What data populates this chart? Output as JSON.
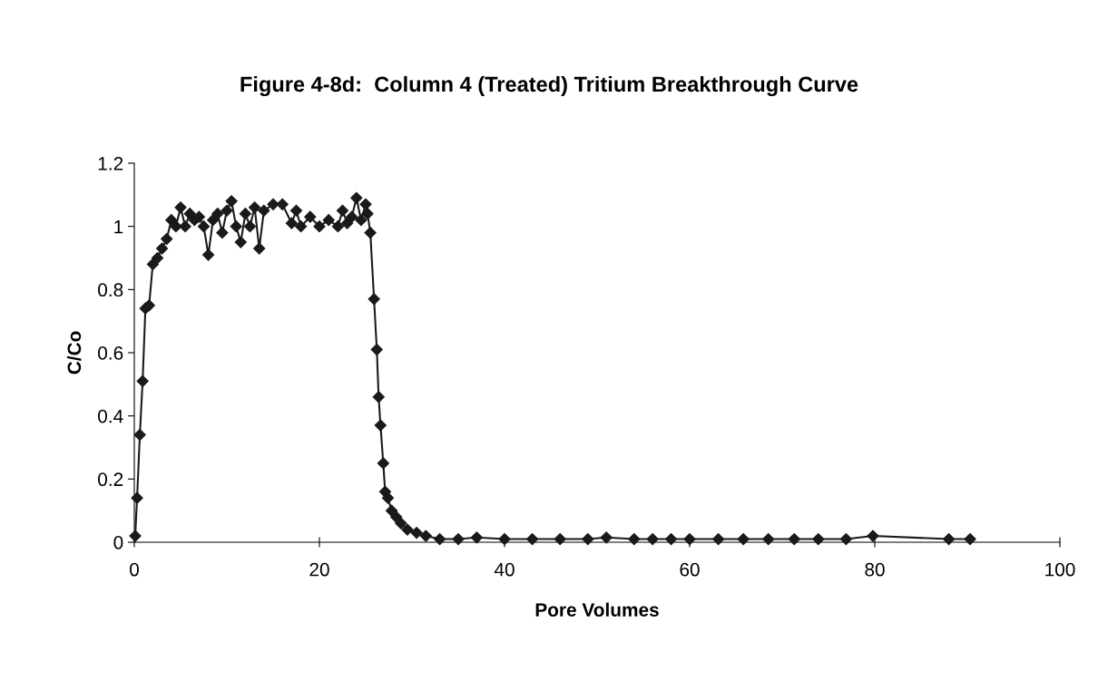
{
  "chart_data": {
    "type": "line",
    "title": "Figure 4-8d:  Column 4 (Treated) Tritium Breakthrough Curve",
    "xlabel": "Pore Volumes",
    "ylabel": "C/Co",
    "xlim": [
      0,
      100
    ],
    "xticks": [
      0,
      20,
      40,
      60,
      80,
      100
    ],
    "ylim": [
      0,
      1.2
    ],
    "yticks": [
      0,
      0.2,
      0.4,
      0.6,
      0.8,
      1,
      1.2
    ],
    "marker": "diamond",
    "line_style": "solid",
    "grid": false,
    "legend": false,
    "series": [
      {
        "color": "#1a1a1a",
        "x": [
          0.1,
          0.3,
          0.6,
          0.9,
          1.2,
          1.6,
          2.0,
          2.5,
          3.0,
          3.5,
          4.0,
          4.5,
          5.0,
          5.5,
          6.0,
          6.5,
          7.0,
          7.5,
          8.0,
          8.5,
          9.0,
          9.5,
          10.0,
          10.5,
          11.0,
          11.5,
          12.0,
          12.5,
          13.0,
          13.5,
          14.0,
          15.0,
          16.0,
          17.0,
          17.5,
          18.0,
          19.0,
          20.0,
          21.0,
          22.0,
          22.5,
          23.0,
          23.5,
          24.0,
          24.5,
          25.0,
          25.2,
          25.5,
          25.9,
          26.2,
          26.4,
          26.6,
          26.9,
          27.1,
          27.4,
          27.8,
          28.3,
          28.8,
          29.5,
          30.5,
          31.5,
          33,
          35,
          37,
          40,
          43,
          46,
          49,
          51,
          54,
          56,
          58,
          60,
          63.1,
          65.8,
          68.5,
          71.3,
          73.9,
          76.9,
          79.8,
          88,
          90.3
        ],
        "values": [
          0.02,
          0.14,
          0.34,
          0.51,
          0.74,
          0.75,
          0.88,
          0.9,
          0.93,
          0.96,
          1.02,
          1.0,
          1.06,
          1.0,
          1.04,
          1.02,
          1.03,
          1.0,
          0.91,
          1.02,
          1.04,
          0.98,
          1.05,
          1.08,
          1.0,
          0.95,
          1.04,
          1.0,
          1.06,
          0.93,
          1.05,
          1.07,
          1.07,
          1.01,
          1.05,
          1.0,
          1.03,
          1.0,
          1.02,
          1.0,
          1.05,
          1.01,
          1.03,
          1.09,
          1.02,
          1.07,
          1.04,
          0.98,
          0.77,
          0.61,
          0.46,
          0.37,
          0.25,
          0.16,
          0.14,
          0.1,
          0.08,
          0.06,
          0.04,
          0.03,
          0.02,
          0.01,
          0.01,
          0.015,
          0.01,
          0.01,
          0.01,
          0.01,
          0.015,
          0.01,
          0.01,
          0.01,
          0.01,
          0.01,
          0.01,
          0.01,
          0.01,
          0.01,
          0.01,
          0.02,
          0.01,
          0.01
        ]
      }
    ]
  }
}
